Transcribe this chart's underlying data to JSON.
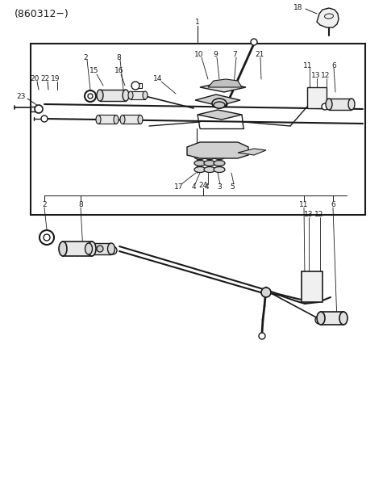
{
  "bg": "#ffffff",
  "lc": "#1a1a1a",
  "tc": "#1a1a1a",
  "title": "(860312−)",
  "figsize": [
    4.8,
    6.24
  ],
  "dpi": 100
}
